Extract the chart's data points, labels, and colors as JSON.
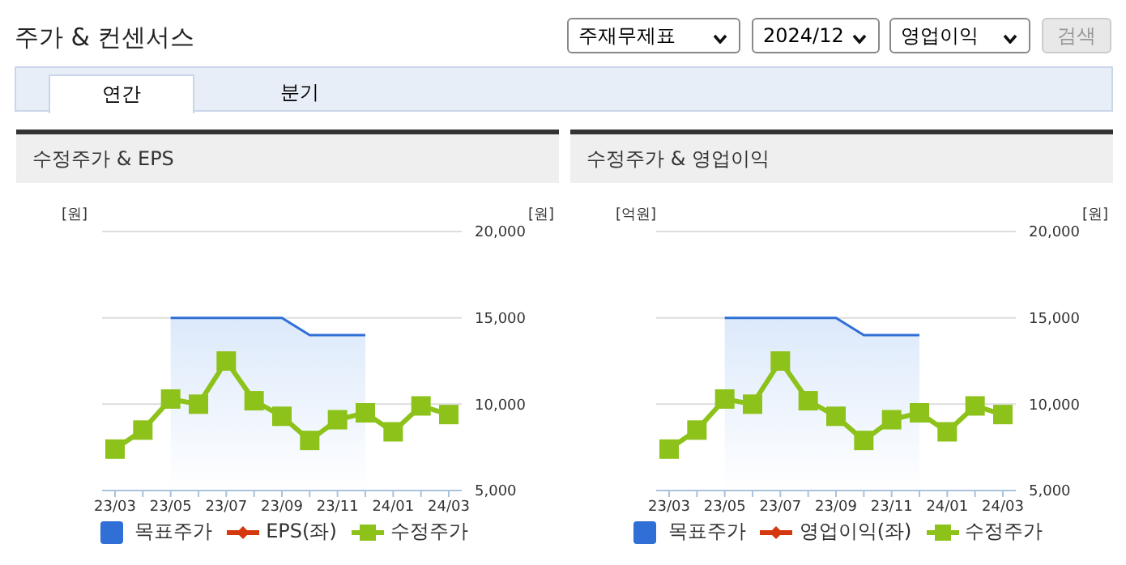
{
  "chart_data": [
    {
      "type": "other",
      "title": "주가 & 컨센서스",
      "annotations": [
        "주재무제표",
        "2024/12",
        "영업이익",
        "검색",
        "연간",
        "분기"
      ]
    },
    {
      "type": "line",
      "title": "수정주가 & EPS",
      "ylabel": "[원]",
      "y2label": "[원]",
      "categories": [
        "23/03",
        null,
        "23/05",
        null,
        "23/07",
        null,
        "23/09",
        null,
        "23/11",
        null,
        "24/01",
        null,
        "24/03"
      ],
      "y2lim": [
        5000,
        20000
      ],
      "y2ticks": [
        {
          "value": 5000,
          "label": "5,000"
        },
        {
          "value": 10000,
          "label": "10,000"
        },
        {
          "value": 15000,
          "label": "15,000"
        },
        {
          "value": 20000,
          "label": "20,000"
        }
      ],
      "grid": "y",
      "legend": "bottom",
      "series": [
        {
          "name": "목표주가",
          "type": "area",
          "axis": "y2",
          "color": "#2f6fd6",
          "marker": "none",
          "values": [
            null,
            null,
            15000,
            15000,
            15000,
            15000,
            15000,
            14000,
            14000,
            14000,
            null,
            null,
            null
          ]
        },
        {
          "name": "EPS(좌)",
          "type": "line",
          "axis": "y",
          "color": "#d4380d",
          "marker": "diamond",
          "values": [
            null,
            null,
            null,
            null,
            null,
            null,
            null,
            null,
            null,
            null,
            null,
            null,
            null
          ]
        },
        {
          "name": "수정주가",
          "type": "line",
          "axis": "y2",
          "color": "#8cc21a",
          "marker": "square",
          "values": [
            7400,
            8500,
            10300,
            10000,
            12500,
            10200,
            9300,
            7900,
            9100,
            9500,
            8400,
            9900,
            9400
          ]
        }
      ]
    },
    {
      "type": "line",
      "title": "수정주가 & 영업이익",
      "ylabel": "[억원]",
      "y2label": "[원]",
      "categories": [
        "23/03",
        null,
        "23/05",
        null,
        "23/07",
        null,
        "23/09",
        null,
        "23/11",
        null,
        "24/01",
        null,
        "24/03"
      ],
      "y2lim": [
        5000,
        20000
      ],
      "y2ticks": [
        {
          "value": 5000,
          "label": "5,000"
        },
        {
          "value": 10000,
          "label": "10,000"
        },
        {
          "value": 15000,
          "label": "15,000"
        },
        {
          "value": 20000,
          "label": "20,000"
        }
      ],
      "grid": "y",
      "legend": "bottom",
      "series": [
        {
          "name": "목표주가",
          "type": "area",
          "axis": "y2",
          "color": "#2f6fd6",
          "marker": "none",
          "values": [
            null,
            null,
            15000,
            15000,
            15000,
            15000,
            15000,
            14000,
            14000,
            14000,
            null,
            null,
            null
          ]
        },
        {
          "name": "영업이익(좌)",
          "type": "line",
          "axis": "y",
          "color": "#d4380d",
          "marker": "diamond",
          "values": [
            null,
            null,
            null,
            null,
            null,
            null,
            null,
            null,
            null,
            null,
            null,
            null,
            null
          ]
        },
        {
          "name": "수정주가",
          "type": "line",
          "axis": "y2",
          "color": "#8cc21a",
          "marker": "square",
          "values": [
            7400,
            8500,
            10300,
            10000,
            12500,
            10200,
            9300,
            7900,
            9100,
            9500,
            8400,
            9900,
            9400
          ]
        }
      ]
    }
  ]
}
